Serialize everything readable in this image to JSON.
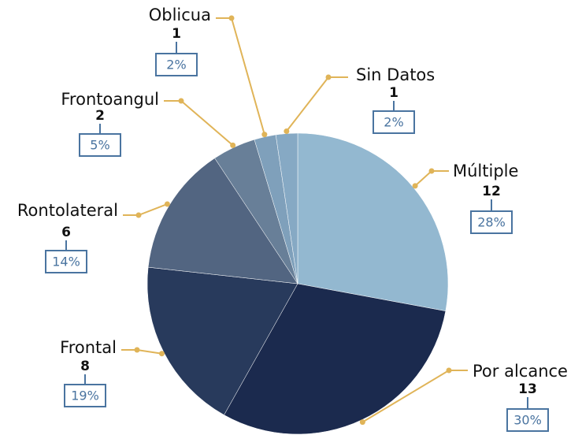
{
  "chart_data": {
    "type": "pie",
    "categories": [
      "Múltiple",
      "Por alcance",
      "Frontal",
      "Rontolateral",
      "Frontoangul",
      "Oblicua",
      "Sin Datos"
    ],
    "values": [
      12,
      13,
      8,
      6,
      2,
      1,
      1
    ],
    "value_labels": [
      "28%",
      "30%",
      "19%",
      "14%",
      "5%",
      "2%",
      "2%"
    ],
    "colors": [
      "#93b8d0",
      "#1b2a4e",
      "#283a5c",
      "#526581",
      "#687f98",
      "#7fa0bb",
      "#86a9c4"
    ]
  }
}
